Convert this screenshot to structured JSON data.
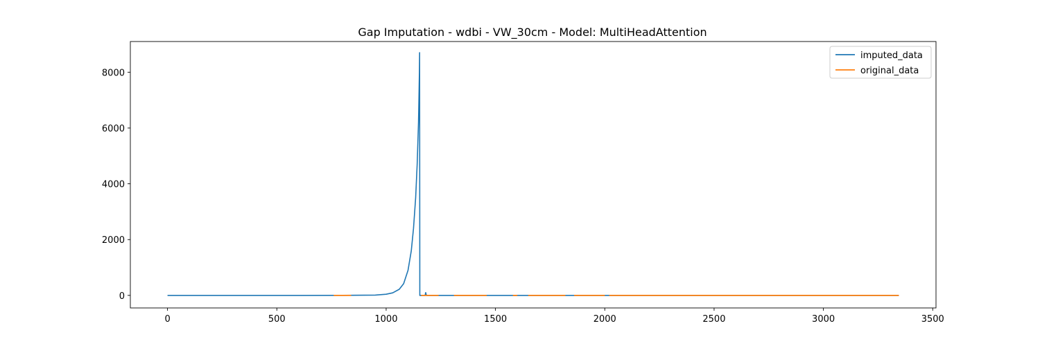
{
  "chart_data": {
    "type": "line",
    "title": "Gap Imputation - wdbi - VW_30cm - Model: MultiHeadAttention",
    "xlabel": "",
    "ylabel": "",
    "xlim": [
      -170,
      3515
    ],
    "ylim": [
      -450,
      9100
    ],
    "xticks": [
      0,
      500,
      1000,
      1500,
      2000,
      2500,
      3000,
      3500
    ],
    "yticks": [
      0,
      2000,
      4000,
      6000,
      8000
    ],
    "grid": false,
    "legend": "top-right",
    "series": [
      {
        "name": "imputed_data",
        "color": "#1f77b4",
        "x": [
          0,
          200,
          400,
          600,
          800,
          900,
          950,
          1000,
          1030,
          1060,
          1080,
          1100,
          1115,
          1125,
          1135,
          1142,
          1148,
          1152,
          1153,
          1154,
          1160,
          1170,
          1178,
          1181,
          1184,
          1190,
          1200,
          1300,
          1500,
          1800,
          2000,
          2500,
          3000,
          3345
        ],
        "y": [
          0,
          0,
          0,
          0,
          2,
          6,
          12,
          40,
          90,
          220,
          420,
          900,
          1600,
          2400,
          3500,
          4700,
          6200,
          8000,
          8700,
          0,
          0,
          0,
          0,
          100,
          0,
          0,
          0,
          0,
          0,
          0,
          0,
          0,
          0,
          0
        ]
      },
      {
        "name": "original_data",
        "color": "#ff7f0e",
        "segments": [
          {
            "x": [
              760,
              840
            ],
            "y": [
              0,
              0
            ]
          },
          {
            "x": [
              1160,
              1240
            ],
            "y": [
              0,
              0
            ]
          },
          {
            "x": [
              1310,
              1460
            ],
            "y": [
              0,
              0
            ]
          },
          {
            "x": [
              1580,
              1600
            ],
            "y": [
              0,
              0
            ]
          },
          {
            "x": [
              1650,
              1820
            ],
            "y": [
              0,
              0
            ]
          },
          {
            "x": [
              1860,
              2000
            ],
            "y": [
              0,
              0
            ]
          },
          {
            "x": [
              2020,
              3345
            ],
            "y": [
              0,
              0
            ]
          }
        ]
      }
    ]
  }
}
